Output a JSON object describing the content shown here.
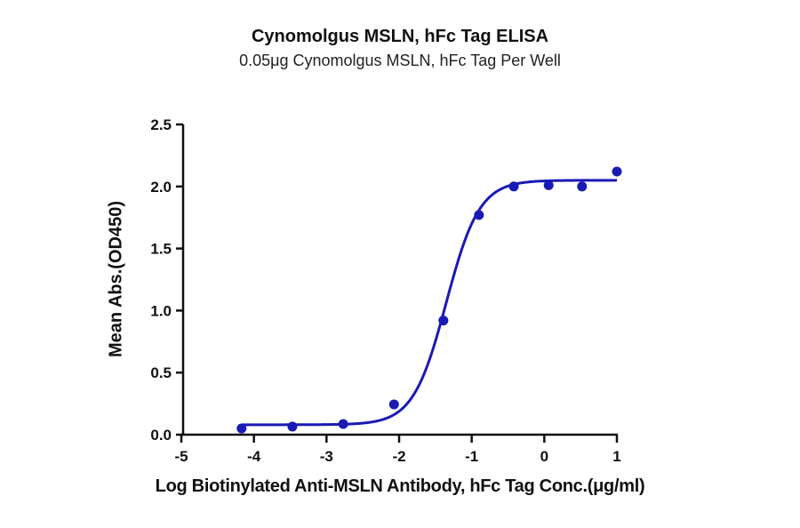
{
  "chart_data": {
    "type": "scatter",
    "title": "Cynomolgus MSLN, hFc Tag ELISA",
    "subtitle": "0.05μg Cynomolgus MSLN, hFc Tag Per Well",
    "xlabel": "Log Biotinylated Anti-MSLN Antibody, hFc Tag Conc.(μg/ml)",
    "ylabel": "Mean Abs.(OD450)",
    "xlim": [
      -5,
      1
    ],
    "ylim": [
      0,
      2.5
    ],
    "x_ticks": [
      "-5",
      "-4",
      "-3",
      "-2",
      "-1",
      "0",
      "1"
    ],
    "y_ticks": [
      "0.0",
      "0.5",
      "1.0",
      "1.5",
      "2.0",
      "2.5"
    ],
    "grid": false,
    "legend": null,
    "series": [
      {
        "name": "Mean Abs.",
        "color": "#1a1ab4",
        "x": [
          -4.17,
          -3.47,
          -2.77,
          -2.07,
          -1.39,
          -0.9,
          -0.42,
          0.06,
          0.52,
          1.0
        ],
        "y": [
          0.05,
          0.065,
          0.086,
          0.244,
          0.92,
          1.77,
          2.0,
          2.01,
          2.0,
          2.12
        ]
      }
    ],
    "fit": {
      "type": "4PL sigmoid",
      "bottom": 0.08,
      "top": 2.05,
      "log_ec50": -1.35,
      "hill_slope": 1.9,
      "x_range": [
        -4.17,
        1.0
      ]
    }
  }
}
